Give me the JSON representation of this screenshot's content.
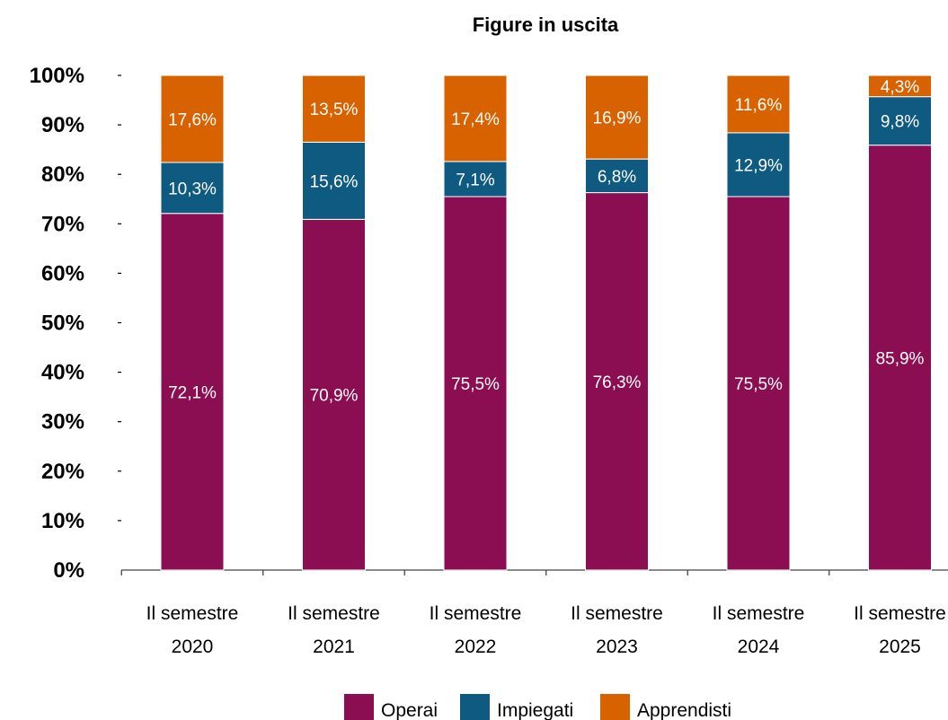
{
  "chart_data": {
    "type": "bar",
    "stacked": true,
    "title": "Figure in uscita",
    "categories": [
      [
        "Il semestre",
        "2020"
      ],
      [
        "Il semestre",
        "2021"
      ],
      [
        "Il semestre",
        "2022"
      ],
      [
        "Il semestre",
        "2023"
      ],
      [
        "Il semestre",
        "2024"
      ],
      [
        "Il semestre",
        "2025"
      ]
    ],
    "series": [
      {
        "name": "Operai",
        "color": "#8B0D52",
        "values": [
          72.1,
          70.9,
          75.5,
          76.3,
          75.5,
          85.9
        ],
        "labels": [
          "72,1%",
          "70,9%",
          "75,5%",
          "76,3%",
          "75,5%",
          "85,9%"
        ]
      },
      {
        "name": "Impiegati",
        "color": "#0F5A80",
        "values": [
          10.3,
          15.6,
          7.1,
          6.8,
          12.9,
          9.8
        ],
        "labels": [
          "10,3%",
          "15,6%",
          "7,1%",
          "6,8%",
          "12,9%",
          "9,8%"
        ]
      },
      {
        "name": "Apprendisti",
        "color": "#D96200",
        "values": [
          17.6,
          13.5,
          17.4,
          16.9,
          11.6,
          4.3
        ],
        "labels": [
          "17,6%",
          "13,5%",
          "17,4%",
          "16,9%",
          "11,6%",
          "4,3%"
        ]
      }
    ],
    "yticks": [
      "0%",
      "10%",
      "20%",
      "30%",
      "40%",
      "50%",
      "60%",
      "70%",
      "80%",
      "90%",
      "100%"
    ],
    "ylim": [
      0,
      100
    ],
    "grid": false,
    "legend": "bottom"
  }
}
